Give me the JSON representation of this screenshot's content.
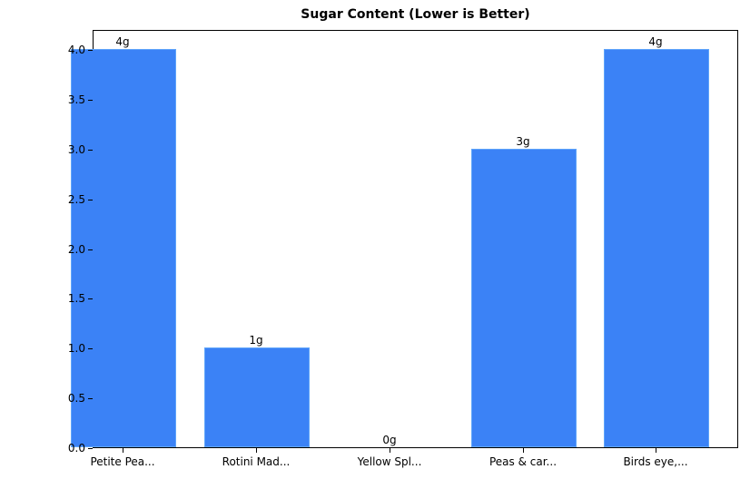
{
  "chart_data": {
    "type": "bar",
    "title": "Sugar Content (Lower is Better)",
    "xlabel": "",
    "ylabel": "",
    "categories": [
      "Petite Pea...",
      "Rotini Mad...",
      "Yellow Spl...",
      "Peas & car...",
      "Birds eye,..."
    ],
    "values": [
      4,
      1,
      0,
      3,
      4
    ],
    "value_labels": [
      "4g",
      "1g",
      "0g",
      "3g",
      "4g"
    ],
    "ylim": [
      0,
      4.2
    ],
    "yticks": [
      0.0,
      0.5,
      1.0,
      1.5,
      2.0,
      2.5,
      3.0,
      3.5,
      4.0
    ],
    "ytick_labels": [
      "0.0",
      "0.5",
      "1.0",
      "1.5",
      "2.0",
      "2.5",
      "3.0",
      "3.5",
      "4.0"
    ],
    "grid": false,
    "legend": null,
    "bar_color": "#3b82f6"
  }
}
